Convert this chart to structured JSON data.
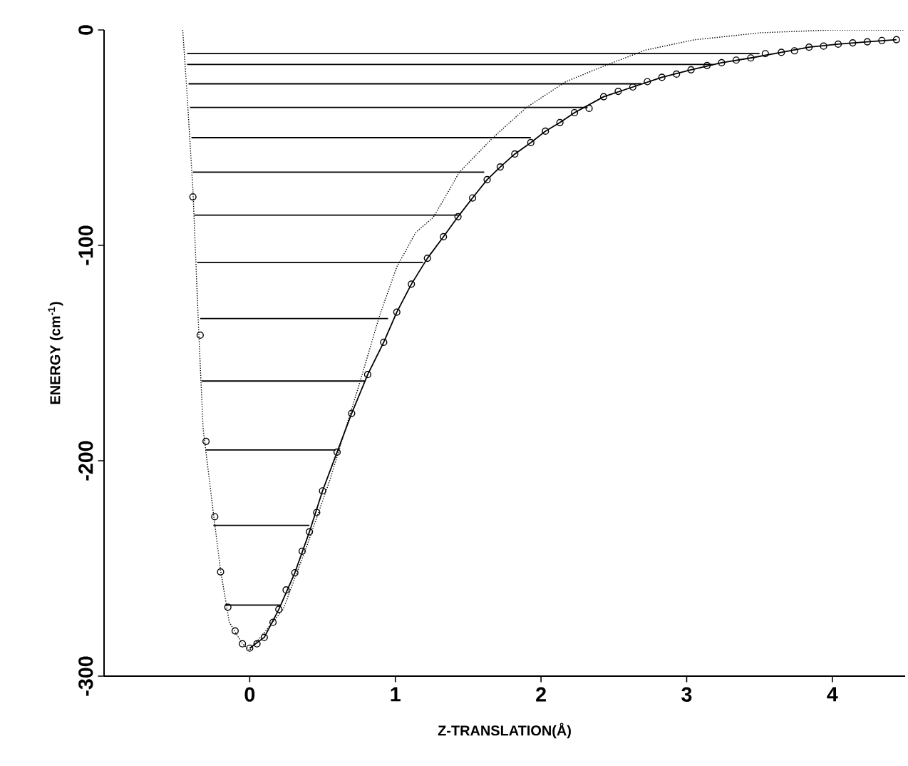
{
  "chart_data": {
    "type": "line",
    "xlabel": "Z-TRANSLATION(Å)",
    "ylabel": "ENERGY (cm$^{-1}$)",
    "xlim": [
      -1,
      4.5
    ],
    "ylim": [
      -300,
      0
    ],
    "xticks": [
      0,
      1,
      2,
      3,
      4
    ],
    "yticks": [
      0,
      -100,
      -200,
      -300
    ],
    "grid": false,
    "series": [
      {
        "color": "#000000",
        "line_style": "dotted",
        "marker": "none",
        "x": [
          -0.46,
          -0.43,
          -0.39,
          -0.35,
          -0.32,
          -0.25,
          -0.2,
          -0.14,
          -0.05,
          0.0,
          0.23,
          0.39,
          0.55,
          0.75,
          0.89,
          1.01,
          1.14,
          1.26,
          1.33,
          1.44,
          1.67,
          1.9,
          2.17,
          2.46,
          2.72,
          3.05,
          3.51,
          4.0,
          4.49
        ],
        "values": [
          0,
          -30,
          -74,
          -140,
          -185,
          -224,
          -251,
          -275,
          -285,
          -288,
          -269,
          -240,
          -209,
          -165,
          -133,
          -110,
          -94,
          -87,
          -79,
          -66,
          -50,
          -36,
          -24,
          -16,
          -9.3,
          -4.6,
          -1.3,
          0,
          0
        ]
      },
      {
        "color": "#000000",
        "line_style": "solid",
        "marker": "none",
        "x": [
          0.0,
          0.1,
          0.2,
          0.31,
          0.41,
          0.5,
          0.6,
          0.7,
          0.81,
          0.92,
          1.01,
          1.11,
          1.22,
          1.33,
          1.43,
          1.53,
          1.63,
          1.72,
          1.82,
          1.93,
          2.03,
          2.13,
          2.23,
          2.43,
          2.63,
          2.83,
          3.03,
          3.24,
          3.44,
          3.65,
          3.84,
          4.04,
          4.24,
          4.44
        ],
        "values": [
          -287,
          -282,
          -269,
          -252,
          -233,
          -214,
          -196,
          -178,
          -160,
          -145,
          -131,
          -118,
          -106,
          -96,
          -86.7,
          -78,
          -69.5,
          -63.6,
          -57.6,
          -52.3,
          -47,
          -43,
          -38.4,
          -31,
          -26.5,
          -22,
          -18.5,
          -15.2,
          -13,
          -10.4,
          -8,
          -6.6,
          -5.5,
          -4.5
        ]
      },
      {
        "type": "scatter",
        "color": "#000000",
        "marker": "circle",
        "x": [
          -0.39,
          -0.34,
          -0.3,
          -0.24,
          -0.2,
          -0.15,
          -0.1,
          -0.05,
          0.0,
          0.05,
          0.1,
          0.16,
          0.2,
          0.25,
          0.31,
          0.36,
          0.41,
          0.46,
          0.5,
          0.6,
          0.7,
          0.81,
          0.92,
          1.01,
          1.11,
          1.22,
          1.33,
          1.43,
          1.53,
          1.63,
          1.72,
          1.82,
          1.93,
          2.03,
          2.13,
          2.23,
          2.33,
          2.43,
          2.53,
          2.63,
          2.73,
          2.83,
          2.93,
          3.03,
          3.14,
          3.24,
          3.34,
          3.44,
          3.54,
          3.65,
          3.74,
          3.84,
          3.94,
          4.04,
          4.14,
          4.24,
          4.34,
          4.44
        ],
        "values": [
          -77.5,
          -141.7,
          -191,
          -226,
          -251.6,
          -268,
          -279,
          -285,
          -287,
          -285,
          -282,
          -275,
          -269,
          -260,
          -252,
          -242,
          -233,
          -224,
          -214,
          -196,
          -178,
          -160,
          -145,
          -131,
          -118,
          -106,
          -96,
          -86.7,
          -78,
          -69.5,
          -63.6,
          -57.6,
          -52.3,
          -47,
          -43,
          -38.4,
          -36.4,
          -31,
          -28.5,
          -26.5,
          -24,
          -22,
          -20.5,
          -18.5,
          -16.5,
          -15.2,
          -14,
          -13,
          -11,
          -10.4,
          -9.7,
          -8,
          -7.5,
          -6.6,
          -6,
          -5.5,
          -4.9,
          -4.5
        ]
      },
      {
        "color": "#000000",
        "line_style": "solid",
        "marker": "none",
        "x": [
          -0.17,
          0.21
        ],
        "values": [
          -267,
          -267
        ]
      },
      {
        "color": "#000000",
        "line_style": "solid",
        "marker": "none",
        "x": [
          -0.25,
          0.41
        ],
        "values": [
          -230,
          -230
        ]
      },
      {
        "color": "#000000",
        "line_style": "solid",
        "marker": "none",
        "x": [
          -0.3,
          0.59
        ],
        "values": [
          -195,
          -195
        ]
      },
      {
        "color": "#000000",
        "line_style": "solid",
        "marker": "none",
        "x": [
          -0.33,
          0.79
        ],
        "values": [
          -163,
          -163
        ]
      },
      {
        "color": "#000000",
        "line_style": "solid",
        "marker": "none",
        "x": [
          -0.34,
          0.95
        ],
        "values": [
          -134,
          -134
        ]
      },
      {
        "color": "#000000",
        "line_style": "solid",
        "marker": "none",
        "x": [
          -0.36,
          1.19
        ],
        "values": [
          -108,
          -108
        ]
      },
      {
        "color": "#000000",
        "line_style": "solid",
        "marker": "none",
        "x": [
          -0.38,
          1.43
        ],
        "values": [
          -86,
          -86
        ]
      },
      {
        "color": "#000000",
        "line_style": "solid",
        "marker": "none",
        "x": [
          -0.39,
          1.61
        ],
        "values": [
          -66,
          -66
        ]
      },
      {
        "color": "#000000",
        "line_style": "solid",
        "marker": "none",
        "x": [
          -0.4,
          1.93
        ],
        "values": [
          -50,
          -50
        ]
      },
      {
        "color": "#000000",
        "line_style": "solid",
        "marker": "none",
        "x": [
          -0.41,
          2.32
        ],
        "values": [
          -36,
          -36
        ]
      },
      {
        "color": "#000000",
        "line_style": "solid",
        "marker": "none",
        "x": [
          -0.42,
          2.69
        ],
        "values": [
          -25,
          -25
        ]
      },
      {
        "color": "#000000",
        "line_style": "solid",
        "marker": "none",
        "x": [
          -0.43,
          3.18
        ],
        "values": [
          -16,
          -16
        ]
      },
      {
        "color": "#000000",
        "line_style": "solid",
        "marker": "none",
        "x": [
          -0.43,
          3.5
        ],
        "values": [
          -11,
          -11
        ]
      }
    ]
  }
}
